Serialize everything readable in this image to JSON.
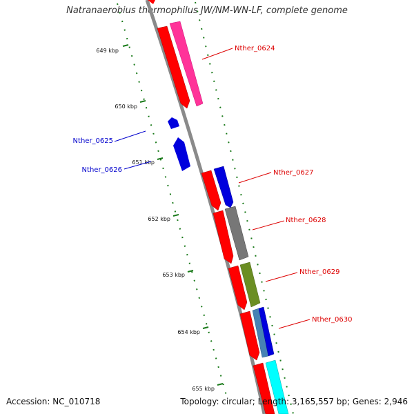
{
  "title": "Natranaerobius thermophilus JW/NM-WN-LF, complete genome",
  "footer": {
    "accession": "Accession: NC_010718",
    "summary": "Topology: circular; Length: 3,165,557 bp; Genes: 2,946"
  },
  "ticks": [
    "649 kbp",
    "650 kbp",
    "651 kbp",
    "652 kbp",
    "653 kbp",
    "654 kbp",
    "655 kbp"
  ],
  "genes": {
    "g0624": "Nther_0624",
    "g0625": "Nther_0625",
    "g0626": "Nther_0626",
    "g0627": "Nther_0627",
    "g0628": "Nther_0628",
    "g0629": "Nther_0629",
    "g0630": "Nther_0630"
  },
  "colors": {
    "forward_strand": "#ff0000",
    "reverse_strand": "#0000dd",
    "backbone": "#808080",
    "tick": "#1a7a1a",
    "cog_pink": "#ff3399",
    "cog_gray": "#777777",
    "cog_olive": "#6b8e23",
    "cog_steelblue": "#4682b4",
    "cog_cyan": "#00ffff"
  }
}
